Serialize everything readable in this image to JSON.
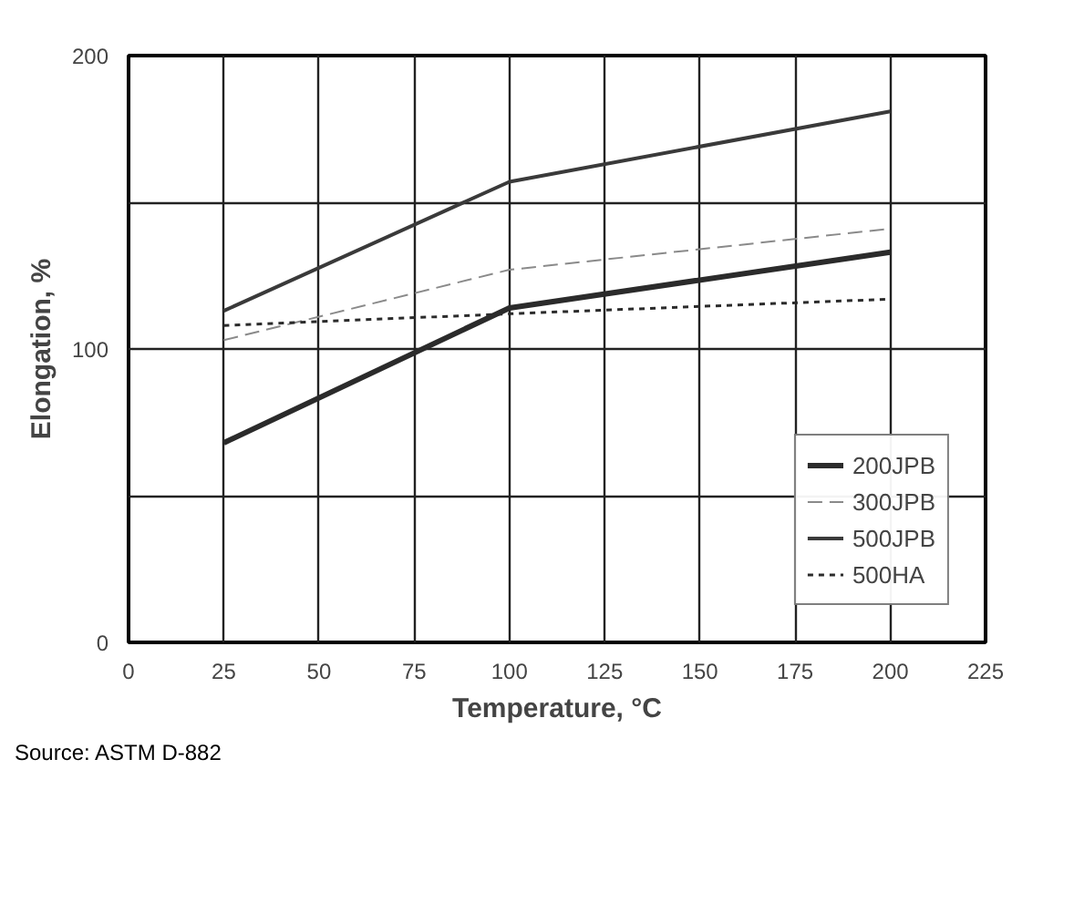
{
  "chart_data": {
    "type": "line",
    "xlabel": "Temperature, °C",
    "ylabel": "Elongation, %",
    "x": [
      25,
      100,
      200
    ],
    "series": [
      {
        "name": "200JPB",
        "color": "#2b2b2b",
        "values": [
          68,
          114,
          133
        ],
        "line_style": "solid"
      },
      {
        "name": "300JPB",
        "color": "#8a8a8a",
        "values": [
          103,
          127,
          141
        ],
        "line_style": "dashed"
      },
      {
        "name": "500JPB",
        "color": "#3a3a3a",
        "values": [
          113,
          157,
          181
        ],
        "line_style": "solid"
      },
      {
        "name": "500HA",
        "color": "#2b2b2b",
        "values": [
          108,
          112,
          117
        ],
        "line_style": "dotted"
      }
    ],
    "xlim": [
      0,
      225
    ],
    "xticks": [
      0,
      25,
      50,
      75,
      100,
      125,
      150,
      175,
      200,
      225
    ],
    "ylim": [
      0,
      200
    ],
    "yticks": [
      0,
      100,
      200
    ],
    "grid": true,
    "legend": "bottom right",
    "marker": "none",
    "annotations": [
      "Source: ASTM D-882"
    ]
  }
}
